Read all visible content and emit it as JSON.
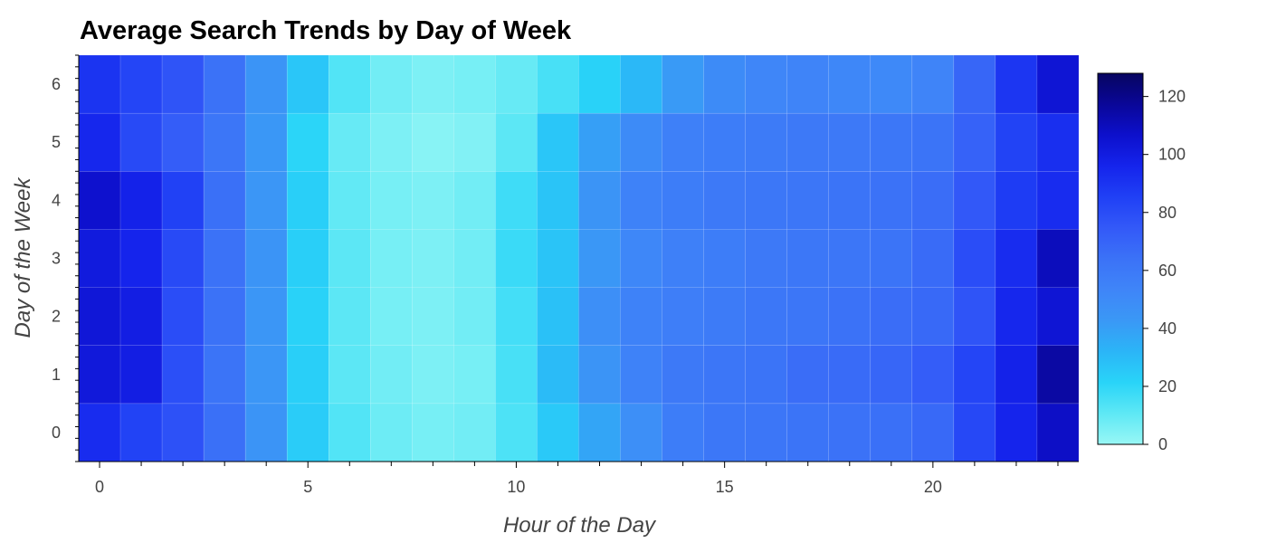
{
  "chart_data": {
    "type": "heatmap",
    "title": "Average Search Trends by Day of Week",
    "xlabel": "Hour of the Day",
    "ylabel": "Day of the Week",
    "x": [
      0,
      1,
      2,
      3,
      4,
      5,
      6,
      7,
      8,
      9,
      10,
      11,
      12,
      13,
      14,
      15,
      16,
      17,
      18,
      19,
      20,
      21,
      22,
      23
    ],
    "y": [
      0,
      1,
      2,
      3,
      4,
      5,
      6
    ],
    "x_ticks": [
      0,
      5,
      10,
      15,
      20
    ],
    "y_ticks": [
      0,
      1,
      2,
      3,
      4,
      5,
      6
    ],
    "xlim": [
      -0.5,
      23.5
    ],
    "ylim": [
      -0.5,
      6.5
    ],
    "colorbar": {
      "min": 0,
      "max": 128,
      "ticks": [
        0,
        20,
        40,
        60,
        80,
        100,
        120
      ]
    },
    "colorscale": [
      "#98f7f5",
      "#5ee8f5",
      "#29d4f8",
      "#2bb5f7",
      "#3a98f6",
      "#3f85f8",
      "#3b72f7",
      "#3359f8",
      "#2040f5",
      "#1524ec",
      "#0d10cc",
      "#0a0798",
      "#070560"
    ],
    "grid": false,
    "z": [
      [
        93,
        84,
        78,
        65,
        45,
        24,
        13,
        8,
        6,
        7,
        14,
        25,
        38,
        48,
        58,
        61,
        62,
        63,
        64,
        65,
        68,
        82,
        96,
        108
      ],
      [
        102,
        99,
        79,
        63,
        44,
        23,
        11,
        7,
        5,
        6,
        15,
        30,
        45,
        55,
        60,
        62,
        63,
        66,
        67,
        69,
        73,
        83,
        97,
        115
      ],
      [
        103,
        99,
        80,
        64,
        44,
        22,
        11,
        6,
        5,
        7,
        16,
        28,
        48,
        55,
        57,
        59,
        61,
        62,
        64,
        66,
        68,
        77,
        95,
        104
      ],
      [
        101,
        96,
        81,
        64,
        45,
        23,
        11,
        6,
        5,
        7,
        18,
        27,
        43,
        52,
        56,
        58,
        60,
        61,
        62,
        63,
        67,
        80,
        93,
        110
      ],
      [
        106,
        97,
        85,
        65,
        44,
        23,
        10,
        6,
        5,
        7,
        17,
        27,
        45,
        55,
        58,
        60,
        61,
        62,
        63,
        64,
        66,
        75,
        87,
        93
      ],
      [
        95,
        81,
        73,
        62,
        43,
        21,
        9,
        5,
        3,
        4,
        11,
        26,
        40,
        50,
        56,
        58,
        59,
        60,
        60,
        61,
        63,
        71,
        84,
        92
      ],
      [
        90,
        83,
        77,
        64,
        45,
        26,
        13,
        7,
        5,
        6,
        9,
        15,
        22,
        31,
        42,
        50,
        53,
        54,
        52,
        51,
        54,
        69,
        89,
        104
      ]
    ]
  }
}
